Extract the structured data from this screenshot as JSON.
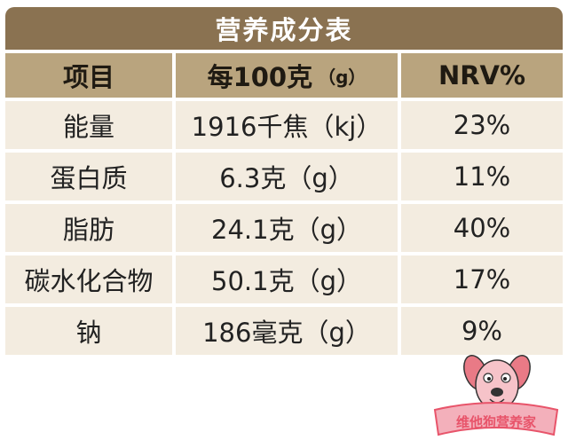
{
  "table": {
    "title": "营养成分表",
    "headers": [
      "项目",
      "每100克",
      "NRV%"
    ],
    "header_unit": "（g）",
    "rows": [
      [
        "能量",
        "1916千焦（kj）",
        "23%"
      ],
      [
        "蛋白质",
        "6.3克（g）",
        "11%"
      ],
      [
        "脂肪",
        "24.1克（g）",
        "40%"
      ],
      [
        "碳水化合物",
        "50.1克（g）",
        "17%"
      ],
      [
        "钠",
        "186毫克（g）",
        "9%"
      ]
    ]
  },
  "logo": {
    "text": "维他狗营养家",
    "colors": {
      "banner": "#e8546a",
      "dog": "#e97a86",
      "ribbon": "#f3b0bb"
    }
  },
  "colors": {
    "title_bg": "#8a7251",
    "header_bg": "#b9a47e",
    "row_bg": "#f3ece0"
  }
}
